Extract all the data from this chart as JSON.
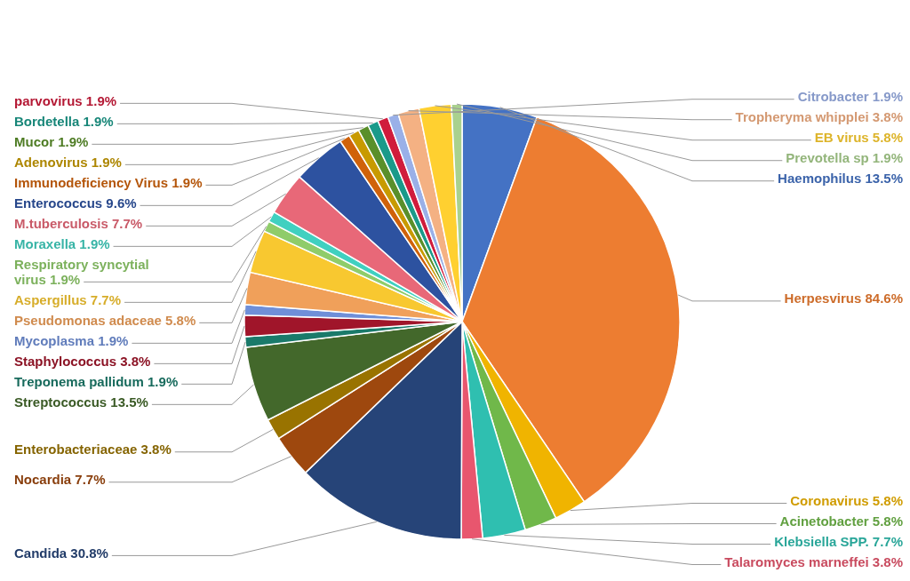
{
  "chart_data": {
    "type": "pie",
    "categories": [
      "Haemophilus",
      "Herpesvirus",
      "Coronavirus",
      "Acinetobacter",
      "Klebsiella SPP.",
      "Talaromyces marneffei",
      "Candida",
      "Nocardia",
      "Enterobacteriaceae",
      "Streptococcus",
      "Treponema pallidum",
      "Staphylococcus",
      "Mycoplasma",
      "Pseudomonas adaceae",
      "Aspergillus",
      "Respiratory syncytial virus",
      "Moraxella",
      "M.tuberculosis",
      "Enterococcus",
      "Immunodeficiency Virus",
      "Adenovirus",
      "Mucor",
      "Bordetella",
      "parvovirus",
      "Citrobacter",
      "Tropheryma whipplei",
      "EB virus",
      "Prevotella sp"
    ],
    "values": [
      13.5,
      84.6,
      5.8,
      5.8,
      7.7,
      3.8,
      30.8,
      7.7,
      3.8,
      13.5,
      1.9,
      3.8,
      1.9,
      5.8,
      7.7,
      1.9,
      1.9,
      7.7,
      9.6,
      1.9,
      1.9,
      1.9,
      1.9,
      1.9,
      1.9,
      3.8,
      5.8,
      1.9
    ],
    "value_labels": [
      "13.5%",
      "84.6%",
      "5.8%",
      "5.8%",
      "7.7%",
      "3.8%",
      "30.8%",
      "7.7%",
      "3.8%",
      "13.5%",
      "1.9%",
      "3.8%",
      "1.9%",
      "5.8%",
      "7.7%",
      "1.9%",
      "1.9%",
      "7.7%",
      "9.6%",
      "1.9%",
      "1.9%",
      "1.9%",
      "1.9%",
      "1.9%",
      "1.9%",
      "3.8%",
      "5.8%",
      "1.9%"
    ],
    "colors": [
      "#4472c4",
      "#ed7d31",
      "#f0b400",
      "#70b84a",
      "#2fbfb0",
      "#e8566e",
      "#264478",
      "#9e480e",
      "#997300",
      "#43682b",
      "#1a7a6a",
      "#a0152a",
      "#6f8fd8",
      "#f0a05a",
      "#f8c830",
      "#8fcc6a",
      "#40d0c0",
      "#e86878",
      "#2d52a0",
      "#d0620a",
      "#c89a00",
      "#5a8f2a",
      "#1a9a8a",
      "#d01c3c",
      "#9ab0e8",
      "#f4b183",
      "#ffd030",
      "#a9d18e"
    ]
  }
}
